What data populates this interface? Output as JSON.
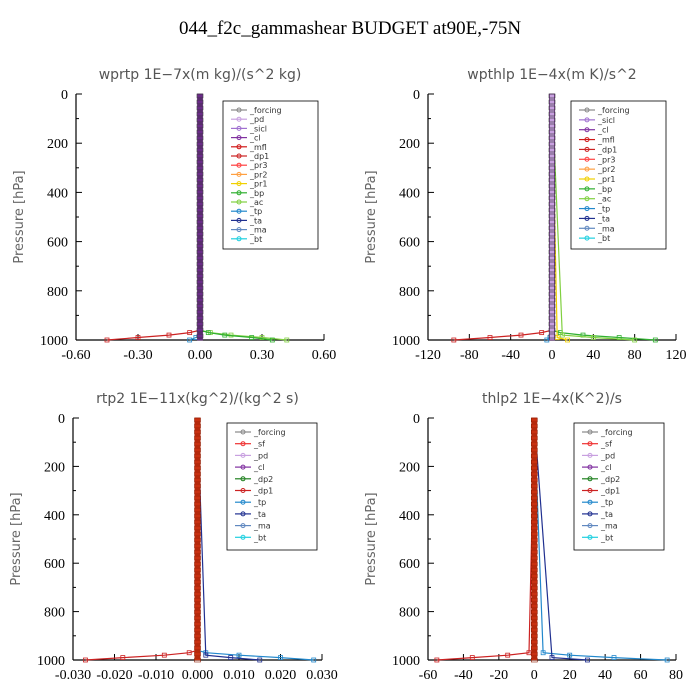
{
  "title": "044_f2c_gammashear  BUDGET at90E,-75N",
  "colors": {
    "_forcing": "#888888",
    "_pd": "#c8a0e0",
    "_sicl": "#a070d0",
    "_cl": "#8030a0",
    "_mfl": "#d01818",
    "_dp1": "#cc2222",
    "_pr3": "#ff4040",
    "_pr2": "#ff9f40",
    "_pr1": "#f0d000",
    "_bp": "#30b030",
    "_ac": "#80d040",
    "_tp": "#2288cc",
    "_ta": "#203090",
    "_ma": "#6088c0",
    "_bt": "#20d0e0",
    "_sf": "#ee3030",
    "_dp2": "#208020"
  },
  "chart_data": [
    {
      "type": "line",
      "title": "wprtp   1E−7x(m kg)/(s^2 kg)",
      "ylabel": "Pressure [hPa]",
      "xlim": [
        -0.6,
        0.6
      ],
      "ylim": [
        1000,
        0
      ],
      "xticks": [
        "-0.60",
        "-0.30",
        "0.00",
        "0.30",
        "0.60"
      ],
      "yticks": [
        "0",
        "200",
        "400",
        "600",
        "800",
        "1000"
      ],
      "legend": [
        "_forcing",
        "_pd",
        "_sicl",
        "_cl",
        "_mfl",
        "_dp1",
        "_pr3",
        "_pr2",
        "_pr1",
        "_bp",
        "_ac",
        "_tp",
        "_ta",
        "_ma",
        "_bt"
      ],
      "series": [
        {
          "name": "_dp1",
          "y": [
            1000,
            990,
            980,
            970,
            960,
            0
          ],
          "x": [
            -0.45,
            -0.3,
            -0.15,
            -0.05,
            0,
            0
          ]
        },
        {
          "name": "_ac",
          "y": [
            1000,
            990,
            980,
            970,
            960,
            0
          ],
          "x": [
            0.42,
            0.3,
            0.15,
            0.05,
            0,
            0
          ]
        },
        {
          "name": "_bp",
          "y": [
            1000,
            990,
            980,
            970,
            960,
            0
          ],
          "x": [
            0.35,
            0.25,
            0.12,
            0.04,
            0,
            0
          ]
        },
        {
          "name": "_tp",
          "y": [
            1000,
            990,
            980,
            0
          ],
          "x": [
            -0.05,
            -0.02,
            0,
            0
          ]
        },
        {
          "name": "_cl",
          "y": [
            1000,
            0
          ],
          "x": [
            0,
            0
          ]
        },
        {
          "name": "_forcing",
          "y": [
            1000,
            0
          ],
          "x": [
            0,
            0
          ]
        }
      ]
    },
    {
      "type": "line",
      "title": "wpthlp   1E−4x(m K)/s^2",
      "ylabel": "Pressure [hPa]",
      "xlim": [
        -120,
        120
      ],
      "ylim": [
        1000,
        0
      ],
      "xticks": [
        "-120",
        "-80",
        "-40",
        "0",
        "40",
        "80",
        "120"
      ],
      "yticks": [
        "0",
        "200",
        "400",
        "600",
        "800",
        "1000"
      ],
      "legend": [
        "_forcing",
        "_sicl",
        "_cl",
        "_mfl",
        "_dp1",
        "_pr3",
        "_pr2",
        "_pr1",
        "_bp",
        "_ac",
        "_tp",
        "_ta",
        "_ma",
        "_bt"
      ],
      "series": [
        {
          "name": "_dp1",
          "y": [
            1000,
            990,
            980,
            970,
            960,
            0
          ],
          "x": [
            -95,
            -60,
            -30,
            -10,
            0,
            0
          ]
        },
        {
          "name": "_bp",
          "y": [
            1000,
            990,
            980,
            970,
            960,
            0
          ],
          "x": [
            100,
            65,
            30,
            8,
            0,
            0
          ]
        },
        {
          "name": "_ac",
          "y": [
            1000,
            990,
            980,
            0
          ],
          "x": [
            80,
            40,
            10,
            0
          ]
        },
        {
          "name": "_pr1",
          "y": [
            1000,
            990,
            0
          ],
          "x": [
            15,
            5,
            0
          ]
        },
        {
          "name": "_tp",
          "y": [
            1000,
            990,
            980,
            0
          ],
          "x": [
            -5,
            -2,
            0,
            0
          ]
        },
        {
          "name": "_pd",
          "y": [
            1000,
            0
          ],
          "x": [
            0,
            0
          ]
        }
      ]
    },
    {
      "type": "line",
      "title": "rtp2   1E−11x(kg^2)/(kg^2 s)",
      "ylabel": "Pressure [hPa]",
      "xlim": [
        -0.03,
        0.03
      ],
      "ylim": [
        1000,
        0
      ],
      "xticks": [
        "-0.030",
        "-0.020",
        "-0.010",
        "0.000",
        "0.010",
        "0.020",
        "0.030"
      ],
      "yticks": [
        "0",
        "200",
        "400",
        "600",
        "800",
        "1000"
      ],
      "legend": [
        "_forcing",
        "_sf",
        "_pd",
        "_cl",
        "_dp2",
        "_dp1",
        "_tp",
        "_ta",
        "_ma",
        "_bt"
      ],
      "series": [
        {
          "name": "_dp1",
          "y": [
            1000,
            990,
            980,
            970,
            960,
            0
          ],
          "x": [
            -0.027,
            -0.018,
            -0.008,
            -0.002,
            0,
            0
          ]
        },
        {
          "name": "_tp",
          "y": [
            1000,
            990,
            980,
            970,
            960,
            0
          ],
          "x": [
            0.028,
            0.02,
            0.01,
            0.002,
            0,
            0
          ]
        },
        {
          "name": "_ta",
          "y": [
            1000,
            990,
            980,
            0
          ],
          "x": [
            0.015,
            0.008,
            0.002,
            0
          ]
        },
        {
          "name": "_forcing",
          "y": [
            1000,
            0
          ],
          "x": [
            0,
            0
          ]
        },
        {
          "name": "_sf",
          "y": [
            1000,
            0
          ],
          "x": [
            0,
            0
          ]
        }
      ]
    },
    {
      "type": "line",
      "title": "thlp2   1E−4x(K^2)/s",
      "ylabel": "Pressure [hPa]",
      "xlim": [
        -60,
        80
      ],
      "ylim": [
        1000,
        0
      ],
      "xticks": [
        "-60",
        "-40",
        "-20",
        "0",
        "20",
        "40",
        "60",
        "80"
      ],
      "yticks": [
        "0",
        "200",
        "400",
        "600",
        "800",
        "1000"
      ],
      "legend": [
        "_forcing",
        "_sf",
        "_pd",
        "_cl",
        "_dp2",
        "_dp1",
        "_tp",
        "_ta",
        "_ma",
        "_bt"
      ],
      "series": [
        {
          "name": "_dp1",
          "y": [
            1000,
            990,
            980,
            970,
            0
          ],
          "x": [
            -55,
            -35,
            -15,
            -3,
            0
          ]
        },
        {
          "name": "_tp",
          "y": [
            1000,
            990,
            980,
            970,
            0
          ],
          "x": [
            75,
            45,
            20,
            5,
            0
          ]
        },
        {
          "name": "_ta",
          "y": [
            1000,
            990,
            0
          ],
          "x": [
            30,
            10,
            0
          ]
        },
        {
          "name": "_forcing",
          "y": [
            1000,
            0
          ],
          "x": [
            0,
            0
          ]
        },
        {
          "name": "_sf",
          "y": [
            1000,
            0
          ],
          "x": [
            0,
            0
          ]
        }
      ]
    }
  ]
}
